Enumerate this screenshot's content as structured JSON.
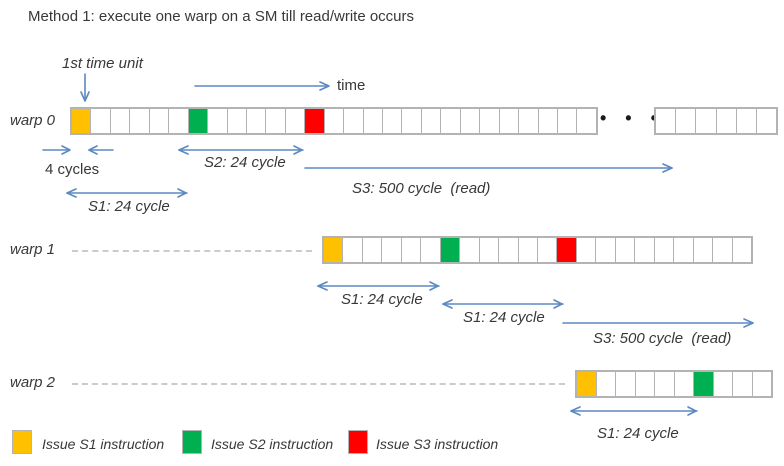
{
  "title": "Method 1: execute one warp on a SM till read/write occurs",
  "colors": {
    "s1": "#FFC000",
    "s2": "#00B050",
    "s3": "#FF0000",
    "arrow": "#5b89c1",
    "cell_border": "#b3b3b3"
  },
  "annotations": {
    "first_time_unit": "1st time unit",
    "time": "time",
    "four_cycles": "4 cycles",
    "ellipsis": "• • •"
  },
  "rows": [
    {
      "label": "warp 0",
      "segments": [
        {
          "cells": 27,
          "colored": {
            "0": "s1",
            "6": "s2",
            "12": "s3"
          }
        },
        {
          "cells": 6,
          "colored": {}
        }
      ]
    },
    {
      "label": "warp 1",
      "segments": [
        {
          "cells": 22,
          "colored": {
            "0": "s1",
            "6": "s2",
            "12": "s3"
          }
        }
      ]
    },
    {
      "label": "warp 2",
      "segments": [
        {
          "cells": 10,
          "colored": {
            "0": "s1",
            "6": "s2"
          }
        }
      ]
    }
  ],
  "arrow_labels": {
    "w0_s2": "S2: 24 cycle",
    "w0_s3": "S3: 500 cycle  (read)",
    "w0_s1": "S1: 24 cycle",
    "w1_s1a": "S1: 24 cycle",
    "w1_s1b": "S1: 24 cycle",
    "w1_s3": "S3: 500 cycle  (read)",
    "w2_s1": "S1: 24 cycle"
  },
  "legend": [
    {
      "color": "s1",
      "label": "Issue S1 instruction"
    },
    {
      "color": "s2",
      "label": "Issue S2 instruction"
    },
    {
      "color": "s3",
      "label": "Issue S3 instruction"
    }
  ]
}
